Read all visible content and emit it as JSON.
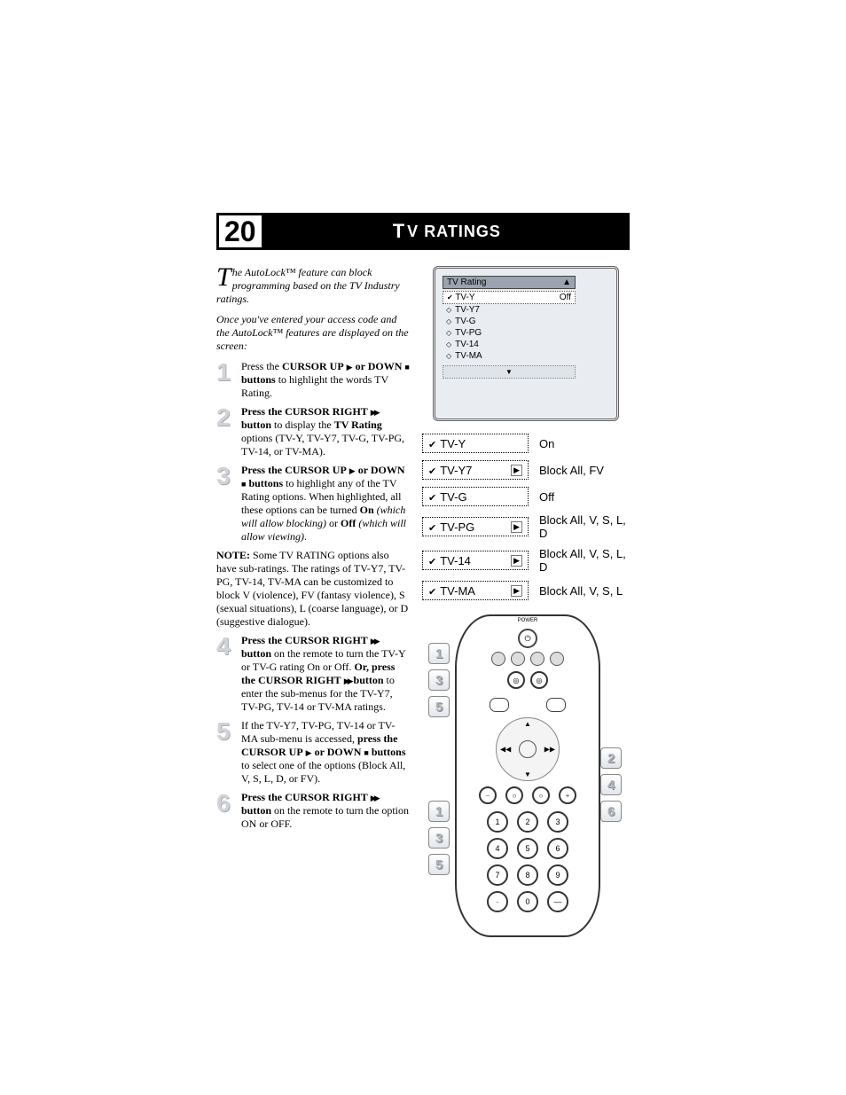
{
  "pageNumber": "20",
  "titleCaps": "V",
  "titlePrefix": "T",
  "titleRest": "RATINGS",
  "intro": {
    "dropcap": "T",
    "p1": "he AutoLock™ feature can block programming based on the TV Industry ratings.",
    "p2": "Once you've entered your access code and the AutoLock™ features are displayed on the screen:"
  },
  "steps": {
    "1": {
      "num": "1",
      "body": "Press the <b>CURSOR UP</b> <span class='tri-right'></span> <b>or DOWN</b> <span class='sq'></span> <b>buttons</b> to highlight the words TV Rating."
    },
    "2": {
      "num": "2",
      "body": "<b>Press the CURSOR RIGHT</b> <span class='ffwd'></span> <b>button</b> to display the <b>TV Rating</b> options (TV-Y, TV-Y7, TV-G, TV-PG, TV-14, or TV-MA)."
    },
    "3": {
      "num": "3",
      "body": "<b>Press the CURSOR UP</b> <span class='tri-right'></span> <b>or DOWN</b> <span class='sq'></span> <b>buttons</b> to highlight any of the TV Rating options. When highlighted, all these options can be turned <b>On</b> <i>(which will allow blocking)</i> or <b>Off</b> <i>(which will allow viewing)</i>."
    },
    "4": {
      "num": "4",
      "body": "<b>Press the CURSOR RIGHT</b> <span class='ffwd'></span> <b>button</b> on the remote to turn the TV-Y or TV-G rating On or Off. <b>Or, press the CURSOR RIGHT</b> <span class='ffwd'></span> <b>button</b> to enter the sub-menus for the TV-Y7, TV-PG, TV-14 or TV-MA ratings."
    },
    "5": {
      "num": "5",
      "body": "If the TV-Y7, TV-PG, TV-14 or TV-MA sub-menu is accessed, <b>press the CURSOR UP</b> <span class='tri-right'></span> <b>or DOWN</b> <span class='sq'></span> <b>buttons</b> to select one of the options (Block All, V, S, L, D, or FV)."
    },
    "6": {
      "num": "6",
      "body": "<b>Press the CURSOR RIGHT</b> <span class='ffwd'></span> <b>button</b> on the remote to turn the option ON or OFF."
    }
  },
  "noteLabel": "NOTE:",
  "note": " Some TV RATING options also have sub-ratings. The ratings of TV-Y7, TV-PG, TV-14, TV-MA can be customized to block V (violence), FV (fantasy violence), S (sexual situations), L (coarse language), or D (suggestive dialogue).",
  "tvMenu": {
    "title": "TV Rating",
    "titleArrow": "▲",
    "selected": {
      "label": "TV-Y",
      "val": "Off"
    },
    "items": [
      "TV-Y7",
      "TV-G",
      "TV-PG",
      "TV-14",
      "TV-MA"
    ],
    "footerArrow": "▼"
  },
  "ratingRows": [
    {
      "label": "TV-Y",
      "arrow": false,
      "opts": "On"
    },
    {
      "label": "TV-Y7",
      "arrow": true,
      "opts": "Block All, FV"
    },
    {
      "label": "TV-G",
      "arrow": false,
      "opts": "Off"
    },
    {
      "label": "TV-PG",
      "arrow": true,
      "opts": "Block All, V, S, L, D"
    },
    {
      "label": "TV-14",
      "arrow": true,
      "opts": "Block All, V, S, L, D"
    },
    {
      "label": "TV-MA",
      "arrow": true,
      "opts": "Block All, V, S, L"
    }
  ],
  "remote": {
    "powerLabel": "POWER",
    "leftCallouts": [
      "1",
      "3",
      "5",
      "1",
      "3",
      "5"
    ],
    "rightCallouts": [
      "2",
      "4",
      "6"
    ],
    "numpad": [
      "1",
      "2",
      "3",
      "4",
      "5",
      "6",
      "7",
      "8",
      "9",
      "·",
      "0",
      "—"
    ]
  },
  "colors": {
    "bannerBg": "#000000",
    "bannerFg": "#ffffff",
    "stepNum": "#d0d3d7",
    "screenBg": "#e9edf2"
  }
}
